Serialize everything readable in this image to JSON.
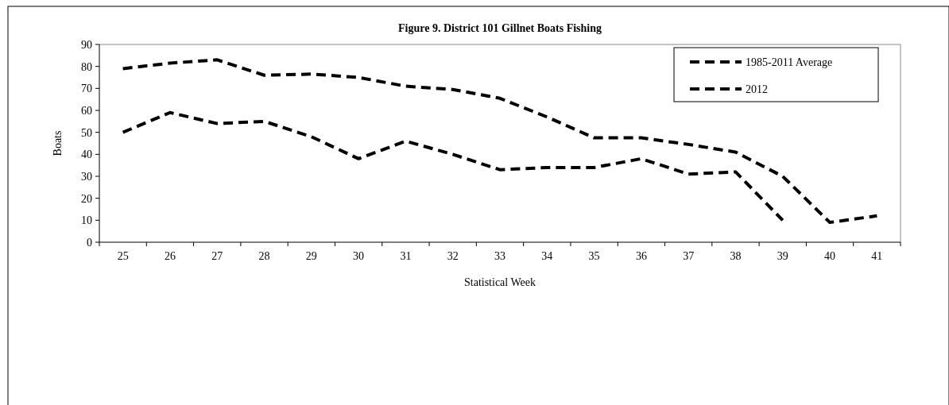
{
  "chart_data": {
    "type": "line",
    "title": "Figure 9. District  101 Gillnet Boats Fishing",
    "xlabel": "Statistical Week",
    "ylabel": "Boats",
    "categories": [
      "25",
      "26",
      "27",
      "28",
      "29",
      "30",
      "31",
      "32",
      "33",
      "34",
      "35",
      "36",
      "37",
      "38",
      "39",
      "40",
      "41"
    ],
    "series": [
      {
        "name": "1985-2011 Average",
        "color": "#000000",
        "line_style": "dashed",
        "values": [
          79,
          81.5,
          83,
          76,
          76.5,
          75,
          71,
          69.5,
          65.5,
          57,
          47.5,
          47.5,
          44.5,
          41,
          30,
          9,
          12
        ]
      },
      {
        "name": "2012",
        "color": "#000000",
        "line_style": "dashed",
        "values": [
          50,
          59,
          54,
          55,
          48,
          38,
          46,
          40,
          33,
          34,
          34,
          38,
          31,
          32,
          10,
          null,
          null
        ]
      }
    ],
    "ylim": [
      0,
      90
    ],
    "yticks": [
      0,
      10,
      20,
      30,
      40,
      50,
      60,
      70,
      80,
      90
    ],
    "grid": false,
    "legend": "top right",
    "marker": "none"
  }
}
